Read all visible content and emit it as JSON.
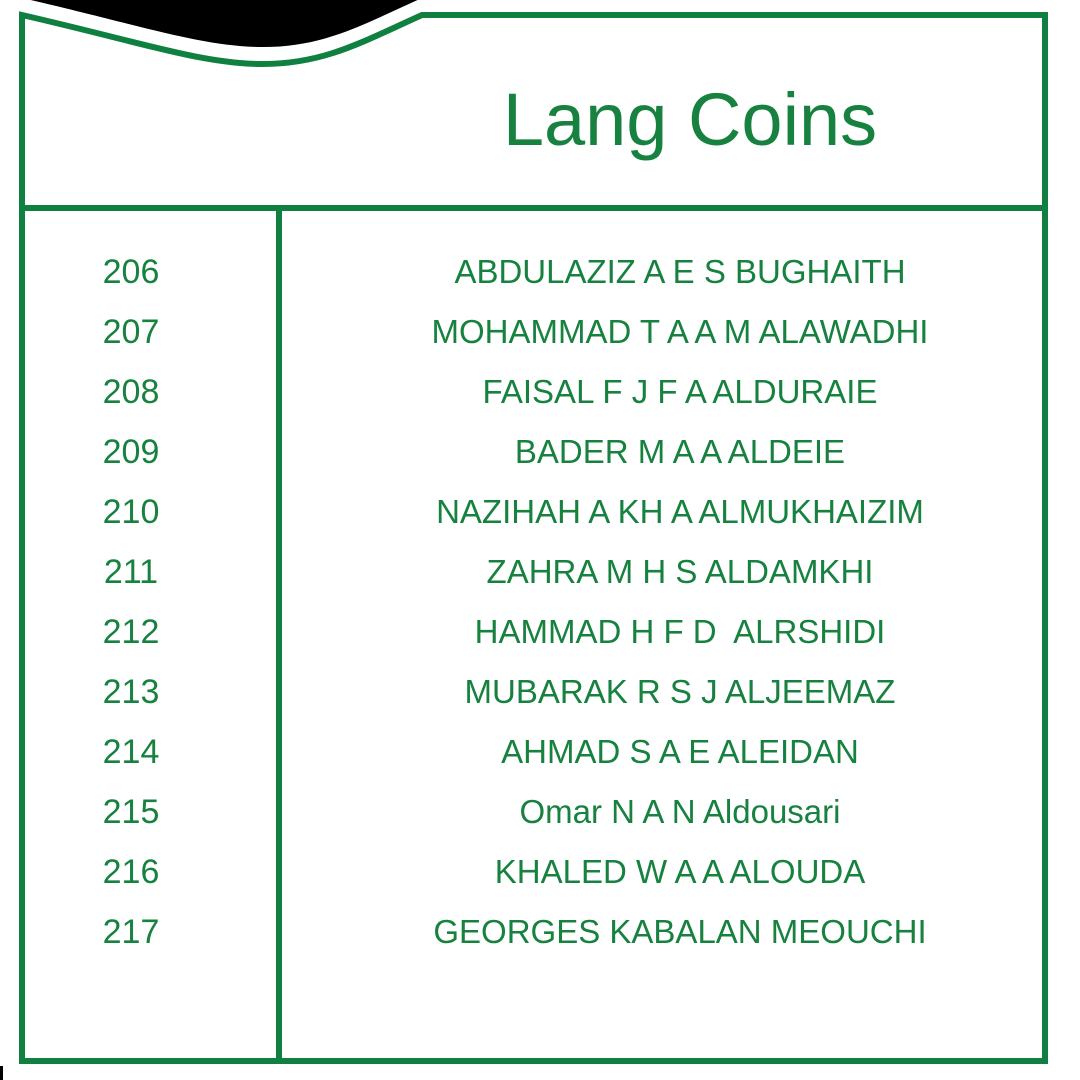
{
  "header": {
    "title": "Lang Coins"
  },
  "table": {
    "rows": [
      {
        "number": "206",
        "name": "ABDULAZIZ A E S BUGHAITH"
      },
      {
        "number": "207",
        "name": "MOHAMMAD T A A M ALAWADHI"
      },
      {
        "number": "208",
        "name": "FAISAL F J F A ALDURAIE"
      },
      {
        "number": "209",
        "name": "BADER M A A ALDEIE"
      },
      {
        "number": "210",
        "name": "NAZIHAH A KH A ALMUKHAIZIM"
      },
      {
        "number": "211",
        "name": "ZAHRA M H S ALDAMKHI"
      },
      {
        "number": "212",
        "name": "HAMMAD H F D  ALRSHIDI"
      },
      {
        "number": "213",
        "name": "MUBARAK R S J ALJEEMAZ"
      },
      {
        "number": "214",
        "name": "AHMAD S A E ALEIDAN"
      },
      {
        "number": "215",
        "name": "Omar N A N Aldousari"
      },
      {
        "number": "216",
        "name": "KHALED W A A ALOUDA"
      },
      {
        "number": "217",
        "name": "GEORGES KABALAN MEOUCHI"
      }
    ]
  },
  "colors": {
    "text_green": "#17813F",
    "line_green": "#0F8040",
    "scan_black": "#000000",
    "background": "#FFFFFF"
  }
}
